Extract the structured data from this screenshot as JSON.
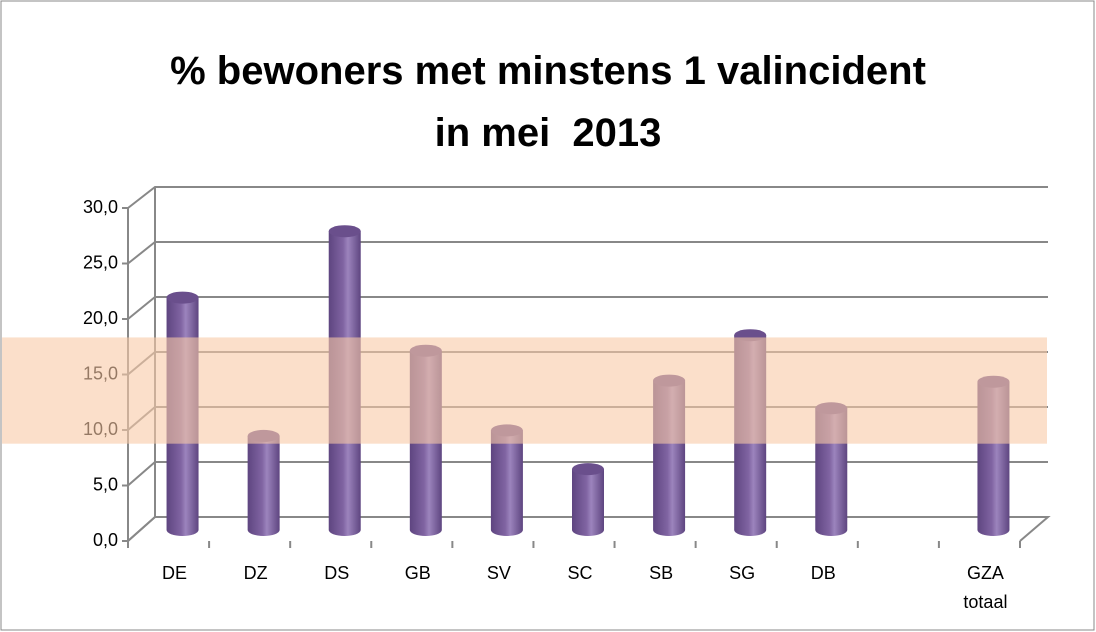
{
  "chart_data": {
    "type": "bar",
    "title": "% bewoners met minstens 1 valincident in mei  2013",
    "categories": [
      "DE",
      "DZ",
      "DS",
      "GB",
      "SV",
      "SC",
      "SB",
      "SG",
      "DB",
      null,
      "GZA totaal"
    ],
    "values": [
      21.0,
      8.5,
      27.0,
      16.2,
      9.0,
      5.5,
      13.5,
      17.6,
      11.0,
      null,
      13.4
    ],
    "color": "#8064a2",
    "ylim": [
      0,
      30
    ],
    "yticks": [
      {
        "value": 0,
        "label": "0,0"
      },
      {
        "value": 5,
        "label": "5,0"
      },
      {
        "value": 10,
        "label": "10,0"
      },
      {
        "value": 15,
        "label": "15,0"
      },
      {
        "value": 20,
        "label": "20,0"
      },
      {
        "value": 25,
        "label": "25,0"
      },
      {
        "value": 30,
        "label": "30,0"
      }
    ],
    "grid": true,
    "band": [
      7.8,
      17.4
    ],
    "band_color": "#f9c9a6"
  }
}
